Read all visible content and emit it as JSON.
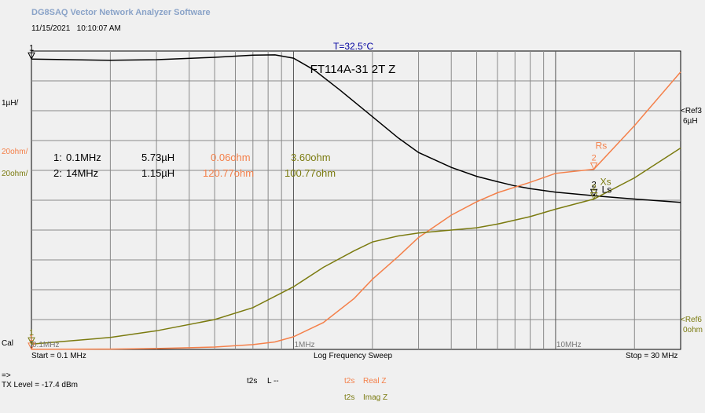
{
  "header": {
    "app_title": "DG8SAQ Vector Network Analyzer Software",
    "date": "11/15/2021",
    "time": "10:10:07 AM",
    "temperature": "T=32.5°C"
  },
  "left_refs": {
    "ls_scale": "1µH/",
    "real_scale": "20ohm/",
    "imag_scale": "20ohm/",
    "cal": "Cal"
  },
  "right_refs": {
    "ref3_label": "<Ref3",
    "ref3_value": "6µH",
    "ref6_label": "<Ref6",
    "ref6_value": "0ohm"
  },
  "markers": {
    "rows": [
      {
        "id": "1:",
        "freq": "0.1MHz",
        "ls": "5.73µH",
        "real": "0.06ohm",
        "imag": "3.60ohm"
      },
      {
        "id": "2:",
        "freq": "14MHz",
        "ls": "1.15µH",
        "real": "120.77ohm",
        "imag": "100.77ohm"
      }
    ]
  },
  "footer": {
    "start": "Start = 0.1 MHz",
    "sweep": "Log Frequency Sweep",
    "stop": "Stop = 30 MHz",
    "arrow": "=>",
    "tx_level": "TX Level = -17.4 dBm"
  },
  "legend": [
    {
      "port": "t2s",
      "name": "L --",
      "color": "#000000"
    },
    {
      "port": "t2s",
      "name": "Real Z",
      "color": "#f4804a"
    },
    {
      "port": "t2s",
      "name": "Imag Z",
      "color": "#7b7b10"
    }
  ],
  "chart_data": {
    "type": "line",
    "title": "FT114A-31 2T Z",
    "x_scale": "log",
    "xlim": [
      0.1,
      30
    ],
    "x_ticks": [
      {
        "value": 0.1,
        "label": "0.1MHz"
      },
      {
        "value": 1,
        "label": "1MHz"
      },
      {
        "value": 10,
        "label": "10MHz"
      }
    ],
    "grid": true,
    "y_divisions": 10,
    "series": [
      {
        "name": "Ls",
        "color": "#000000",
        "axis": "Ls",
        "ylim": [
          -4,
          6
        ],
        "x": [
          0.1,
          0.2,
          0.3,
          0.5,
          0.7,
          0.85,
          1.0,
          1.2,
          1.5,
          2.0,
          2.5,
          3.0,
          4.0,
          5.0,
          6.0,
          7.0,
          8.0,
          10.0,
          14.0,
          20.0,
          30.0
        ],
        "values": [
          5.73,
          5.69,
          5.71,
          5.79,
          5.86,
          5.87,
          5.76,
          5.36,
          4.7,
          3.8,
          3.1,
          2.6,
          2.1,
          1.8,
          1.62,
          1.48,
          1.39,
          1.27,
          1.15,
          1.04,
          0.93
        ]
      },
      {
        "name": "Rs",
        "color": "#f4804a",
        "axis": "ohm",
        "ylim": [
          0,
          200
        ],
        "x": [
          0.1,
          0.2,
          0.3,
          0.5,
          0.7,
          0.85,
          1.0,
          1.3,
          1.7,
          2.0,
          2.5,
          3.0,
          4.0,
          5.0,
          6.0,
          8.0,
          10.0,
          14.0,
          20.0,
          30.0
        ],
        "values": [
          0.06,
          0.2,
          0.6,
          1.6,
          3.2,
          5.0,
          8.5,
          18.0,
          34.0,
          47.0,
          62.0,
          75.0,
          90.0,
          99.0,
          105.0,
          112.0,
          118.0,
          120.77,
          150.0,
          186.0
        ]
      },
      {
        "name": "Xs",
        "color": "#7b7b10",
        "axis": "ohm",
        "ylim": [
          0,
          200
        ],
        "x": [
          0.1,
          0.2,
          0.3,
          0.5,
          0.7,
          1.0,
          1.3,
          1.7,
          2.0,
          2.5,
          3.0,
          4.0,
          5.0,
          6.0,
          8.0,
          10.0,
          14.0,
          20.0,
          30.0
        ],
        "values": [
          3.6,
          8.0,
          12.5,
          20.0,
          28.0,
          42.0,
          55.0,
          66.0,
          72.0,
          76.0,
          78.0,
          80.0,
          81.5,
          84.0,
          89.0,
          94.0,
          100.77,
          115.0,
          135.0
        ]
      }
    ],
    "trace_labels": [
      "Ls",
      "Rs",
      "Xs"
    ],
    "marker_x": [
      0.1,
      14
    ]
  }
}
